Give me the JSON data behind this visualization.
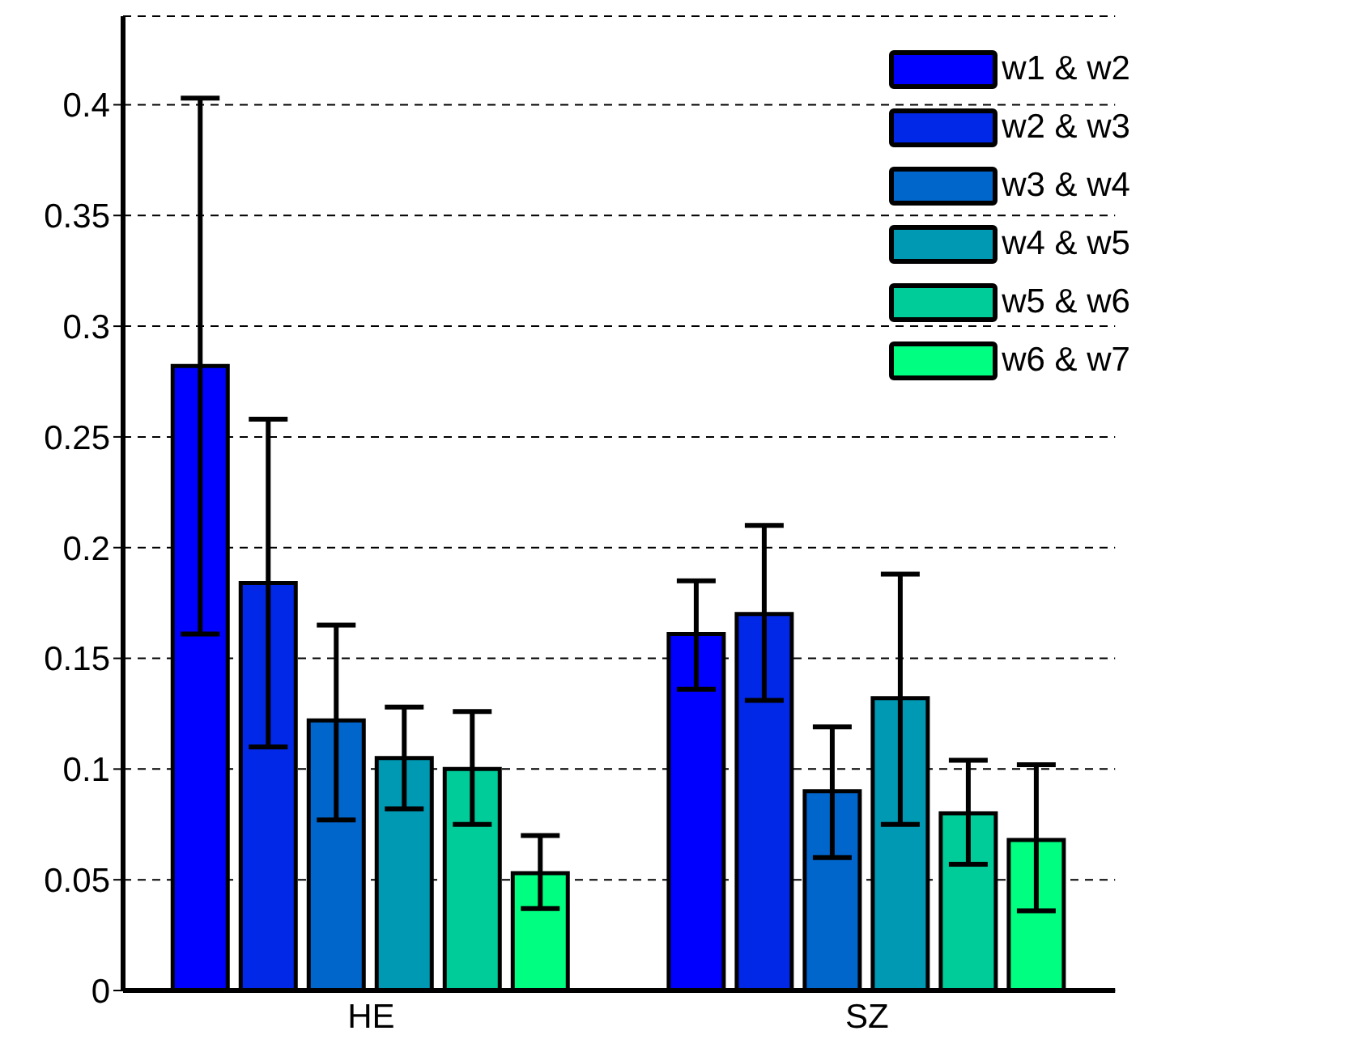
{
  "chart_data": {
    "type": "bar",
    "categories": [
      "HE",
      "SZ"
    ],
    "series": [
      {
        "name": "w1 & w2",
        "color": "#0000ff",
        "values": [
          0.282,
          0.161
        ],
        "errors": [
          [
            0.161,
            0.403
          ],
          [
            0.136,
            0.185
          ]
        ]
      },
      {
        "name": "w2 & w3",
        "color": "#0028e6",
        "values": [
          0.184,
          0.17
        ],
        "errors": [
          [
            0.11,
            0.258
          ],
          [
            0.131,
            0.21
          ]
        ]
      },
      {
        "name": "w3 & w4",
        "color": "#0066cc",
        "values": [
          0.122,
          0.09
        ],
        "errors": [
          [
            0.077,
            0.165
          ],
          [
            0.06,
            0.119
          ]
        ]
      },
      {
        "name": "w4 & w5",
        "color": "#0099b3",
        "values": [
          0.105,
          0.132
        ],
        "errors": [
          [
            0.082,
            0.128
          ],
          [
            0.075,
            0.188
          ]
        ]
      },
      {
        "name": "w5 & w6",
        "color": "#00cc99",
        "values": [
          0.1,
          0.08
        ],
        "errors": [
          [
            0.075,
            0.126
          ],
          [
            0.057,
            0.104
          ]
        ]
      },
      {
        "name": "w6 & w7",
        "color": "#00ff80",
        "values": [
          0.053,
          0.068
        ],
        "errors": [
          [
            0.037,
            0.07
          ],
          [
            0.036,
            0.102
          ]
        ]
      }
    ],
    "ylim": [
      0,
      0.44
    ],
    "yticks": [
      0,
      0.05,
      0.1,
      0.15,
      0.2,
      0.25,
      0.3,
      0.35,
      0.4
    ],
    "grid": "y",
    "legend": "top right"
  }
}
